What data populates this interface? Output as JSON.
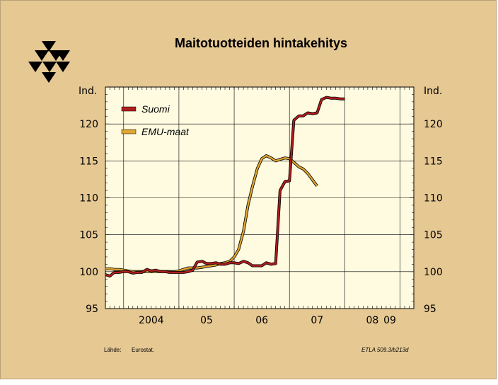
{
  "chart_data": {
    "type": "line",
    "title": "Maitotuotteiden hintakehitys",
    "ylabel_left": "Ind.",
    "ylabel_right": "Ind.",
    "ylim": [
      95,
      125
    ],
    "yticks": [
      95,
      100,
      105,
      110,
      115,
      120
    ],
    "xlim": [
      2003.67,
      2009.25
    ],
    "x_tick_labels": [
      "2004",
      "05",
      "06",
      "07",
      "08",
      "09"
    ],
    "x_tick_label_positions": [
      2004.5,
      2005.5,
      2006.5,
      2007.5,
      2008.5,
      2009.5
    ],
    "grid": true,
    "legend_position": "top-left",
    "series": [
      {
        "name": "Suomi",
        "color": "#b01c1c",
        "x": [
          2003.67,
          2003.75,
          2003.83,
          2003.92,
          2004.0,
          2004.08,
          2004.17,
          2004.25,
          2004.33,
          2004.42,
          2004.5,
          2004.58,
          2004.67,
          2004.75,
          2004.83,
          2004.92,
          2005.0,
          2005.08,
          2005.17,
          2005.25,
          2005.33,
          2005.42,
          2005.5,
          2005.58,
          2005.67,
          2005.75,
          2005.83,
          2005.92,
          2006.0,
          2006.08,
          2006.17,
          2006.25,
          2006.33,
          2006.42,
          2006.5,
          2006.58,
          2006.67,
          2006.75,
          2006.83,
          2006.92,
          2007.0,
          2007.08,
          2007.17,
          2007.25,
          2007.33,
          2007.42,
          2007.5,
          2007.58,
          2007.67,
          2007.75,
          2007.83,
          2007.92,
          2008.0,
          2008.08,
          2008.17,
          2008.25,
          2008.33,
          2008.42,
          2008.5,
          2008.58,
          2008.67,
          2008.75,
          2008.83,
          2008.92,
          2009.0
        ],
        "values": [
          99.6,
          99.4,
          99.9,
          99.9,
          100.0,
          100.0,
          99.8,
          99.9,
          99.9,
          100.3,
          100.1,
          100.2,
          100.0,
          100.0,
          99.9,
          99.9,
          99.9,
          99.9,
          100.0,
          100.2,
          101.3,
          101.4,
          101.1,
          101.1,
          101.2,
          101.0,
          101.0,
          101.2,
          101.2,
          101.1,
          101.4,
          101.2,
          100.8,
          100.8,
          100.8,
          101.2,
          101.0,
          101.1,
          111.0,
          112.2,
          112.3,
          120.5,
          121.1,
          121.1,
          121.5,
          121.4,
          121.5,
          123.3,
          123.6,
          123.5,
          123.5,
          123.4,
          123.4,
          null,
          null,
          null,
          null,
          null,
          null,
          null,
          null,
          null,
          null,
          null,
          null
        ]
      },
      {
        "name": "EMU-maat",
        "color": "#e0a62e",
        "x": [
          2003.67,
          2003.75,
          2003.83,
          2003.92,
          2004.0,
          2004.08,
          2004.17,
          2004.25,
          2004.33,
          2004.42,
          2004.5,
          2004.58,
          2004.67,
          2004.75,
          2004.83,
          2004.92,
          2005.0,
          2005.08,
          2005.17,
          2005.25,
          2005.33,
          2005.42,
          2005.5,
          2005.58,
          2005.67,
          2005.75,
          2005.83,
          2005.92,
          2006.0,
          2006.08,
          2006.17,
          2006.25,
          2006.33,
          2006.42,
          2006.5,
          2006.58,
          2006.67,
          2006.75,
          2006.83,
          2006.92,
          2007.0,
          2007.08,
          2007.17,
          2007.25,
          2007.33,
          2007.42,
          2007.5,
          2007.58,
          2007.67,
          2007.75,
          2007.83,
          2007.92,
          2008.0,
          2008.08,
          2008.17,
          2008.25,
          2008.33,
          2008.42,
          2008.5,
          2008.58,
          2008.67,
          2008.75,
          2008.83,
          2008.92,
          2009.0
        ],
        "values": [
          100.4,
          100.4,
          100.3,
          100.3,
          100.2,
          100.1,
          100.0,
          100.0,
          100.0,
          100.0,
          100.0,
          100.0,
          100.0,
          100.0,
          100.0,
          100.0,
          100.1,
          100.3,
          100.5,
          100.5,
          100.5,
          100.6,
          100.7,
          100.8,
          100.9,
          101.1,
          101.2,
          101.4,
          102.0,
          103.0,
          105.5,
          109.0,
          111.5,
          114.0,
          115.3,
          115.7,
          115.4,
          115.0,
          115.2,
          115.4,
          115.3,
          114.8,
          114.2,
          113.9,
          113.3,
          112.4,
          111.6,
          null,
          null,
          null,
          null,
          null,
          null,
          null,
          null,
          null,
          null,
          null,
          null,
          null,
          null,
          null,
          null,
          null,
          null
        ]
      }
    ]
  },
  "footer": {
    "source_label": "Lähde:",
    "source_value": "Eurostat.",
    "code": "ETLA 509.3/b213d"
  }
}
